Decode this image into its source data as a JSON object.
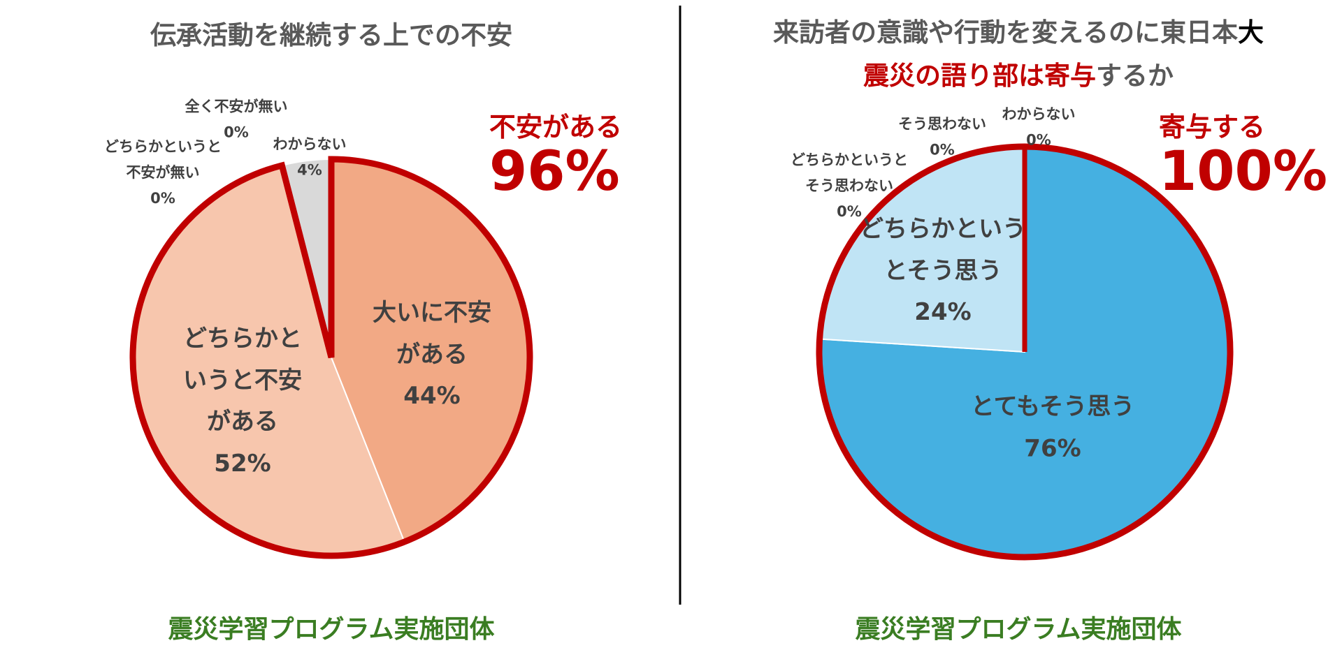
{
  "chart_data": [
    {
      "type": "pie",
      "title_lines": [
        [
          {
            "text": "伝承活動を継続する上での不安",
            "color": "#595959"
          }
        ]
      ],
      "categories": [
        "大いに不安がある",
        "どちらかというと不安がある",
        "わからない",
        "どちらかというと不安が無い",
        "全く不安が無い"
      ],
      "values": [
        44,
        52,
        4,
        0,
        0
      ],
      "value_labels": [
        "44%",
        "52%",
        "4%",
        "0%",
        "0%"
      ],
      "colors": [
        "#f2a985",
        "#f7c6ad",
        "#d9d9d9",
        "#bfbfbf",
        "#a6a6a6"
      ],
      "highlight": {
        "label": "不安がある",
        "value": 96,
        "value_label": "96%",
        "color": "#c00000"
      },
      "footer": "震災学習プログラム実施団体"
    },
    {
      "type": "pie",
      "title_lines": [
        [
          {
            "text": "来訪者の意識や行動を変えるのに東日本",
            "color": "#595959"
          },
          {
            "text": "大",
            "color": "#000000"
          }
        ],
        [
          {
            "text": "震災の語り部は寄与",
            "color": "#c00000"
          },
          {
            "text": "するか",
            "color": "#595959"
          }
        ]
      ],
      "categories": [
        "とてもそう思う",
        "どちらかというとそう思う",
        "どちらかというとそう思わない",
        "そう思わない",
        "わからない"
      ],
      "values": [
        76,
        24,
        0,
        0,
        0
      ],
      "value_labels": [
        "76%",
        "24%",
        "0%",
        "0%",
        "0%"
      ],
      "colors": [
        "#45b0e1",
        "#c0e4f5",
        "#9fd3ec",
        "#7fc4e6",
        "#d9d9d9"
      ],
      "highlight": {
        "label": "寄与する",
        "value": 100,
        "value_label": "100%",
        "color": "#c00000"
      },
      "footer": "震災学習プログラム実施団体"
    }
  ]
}
